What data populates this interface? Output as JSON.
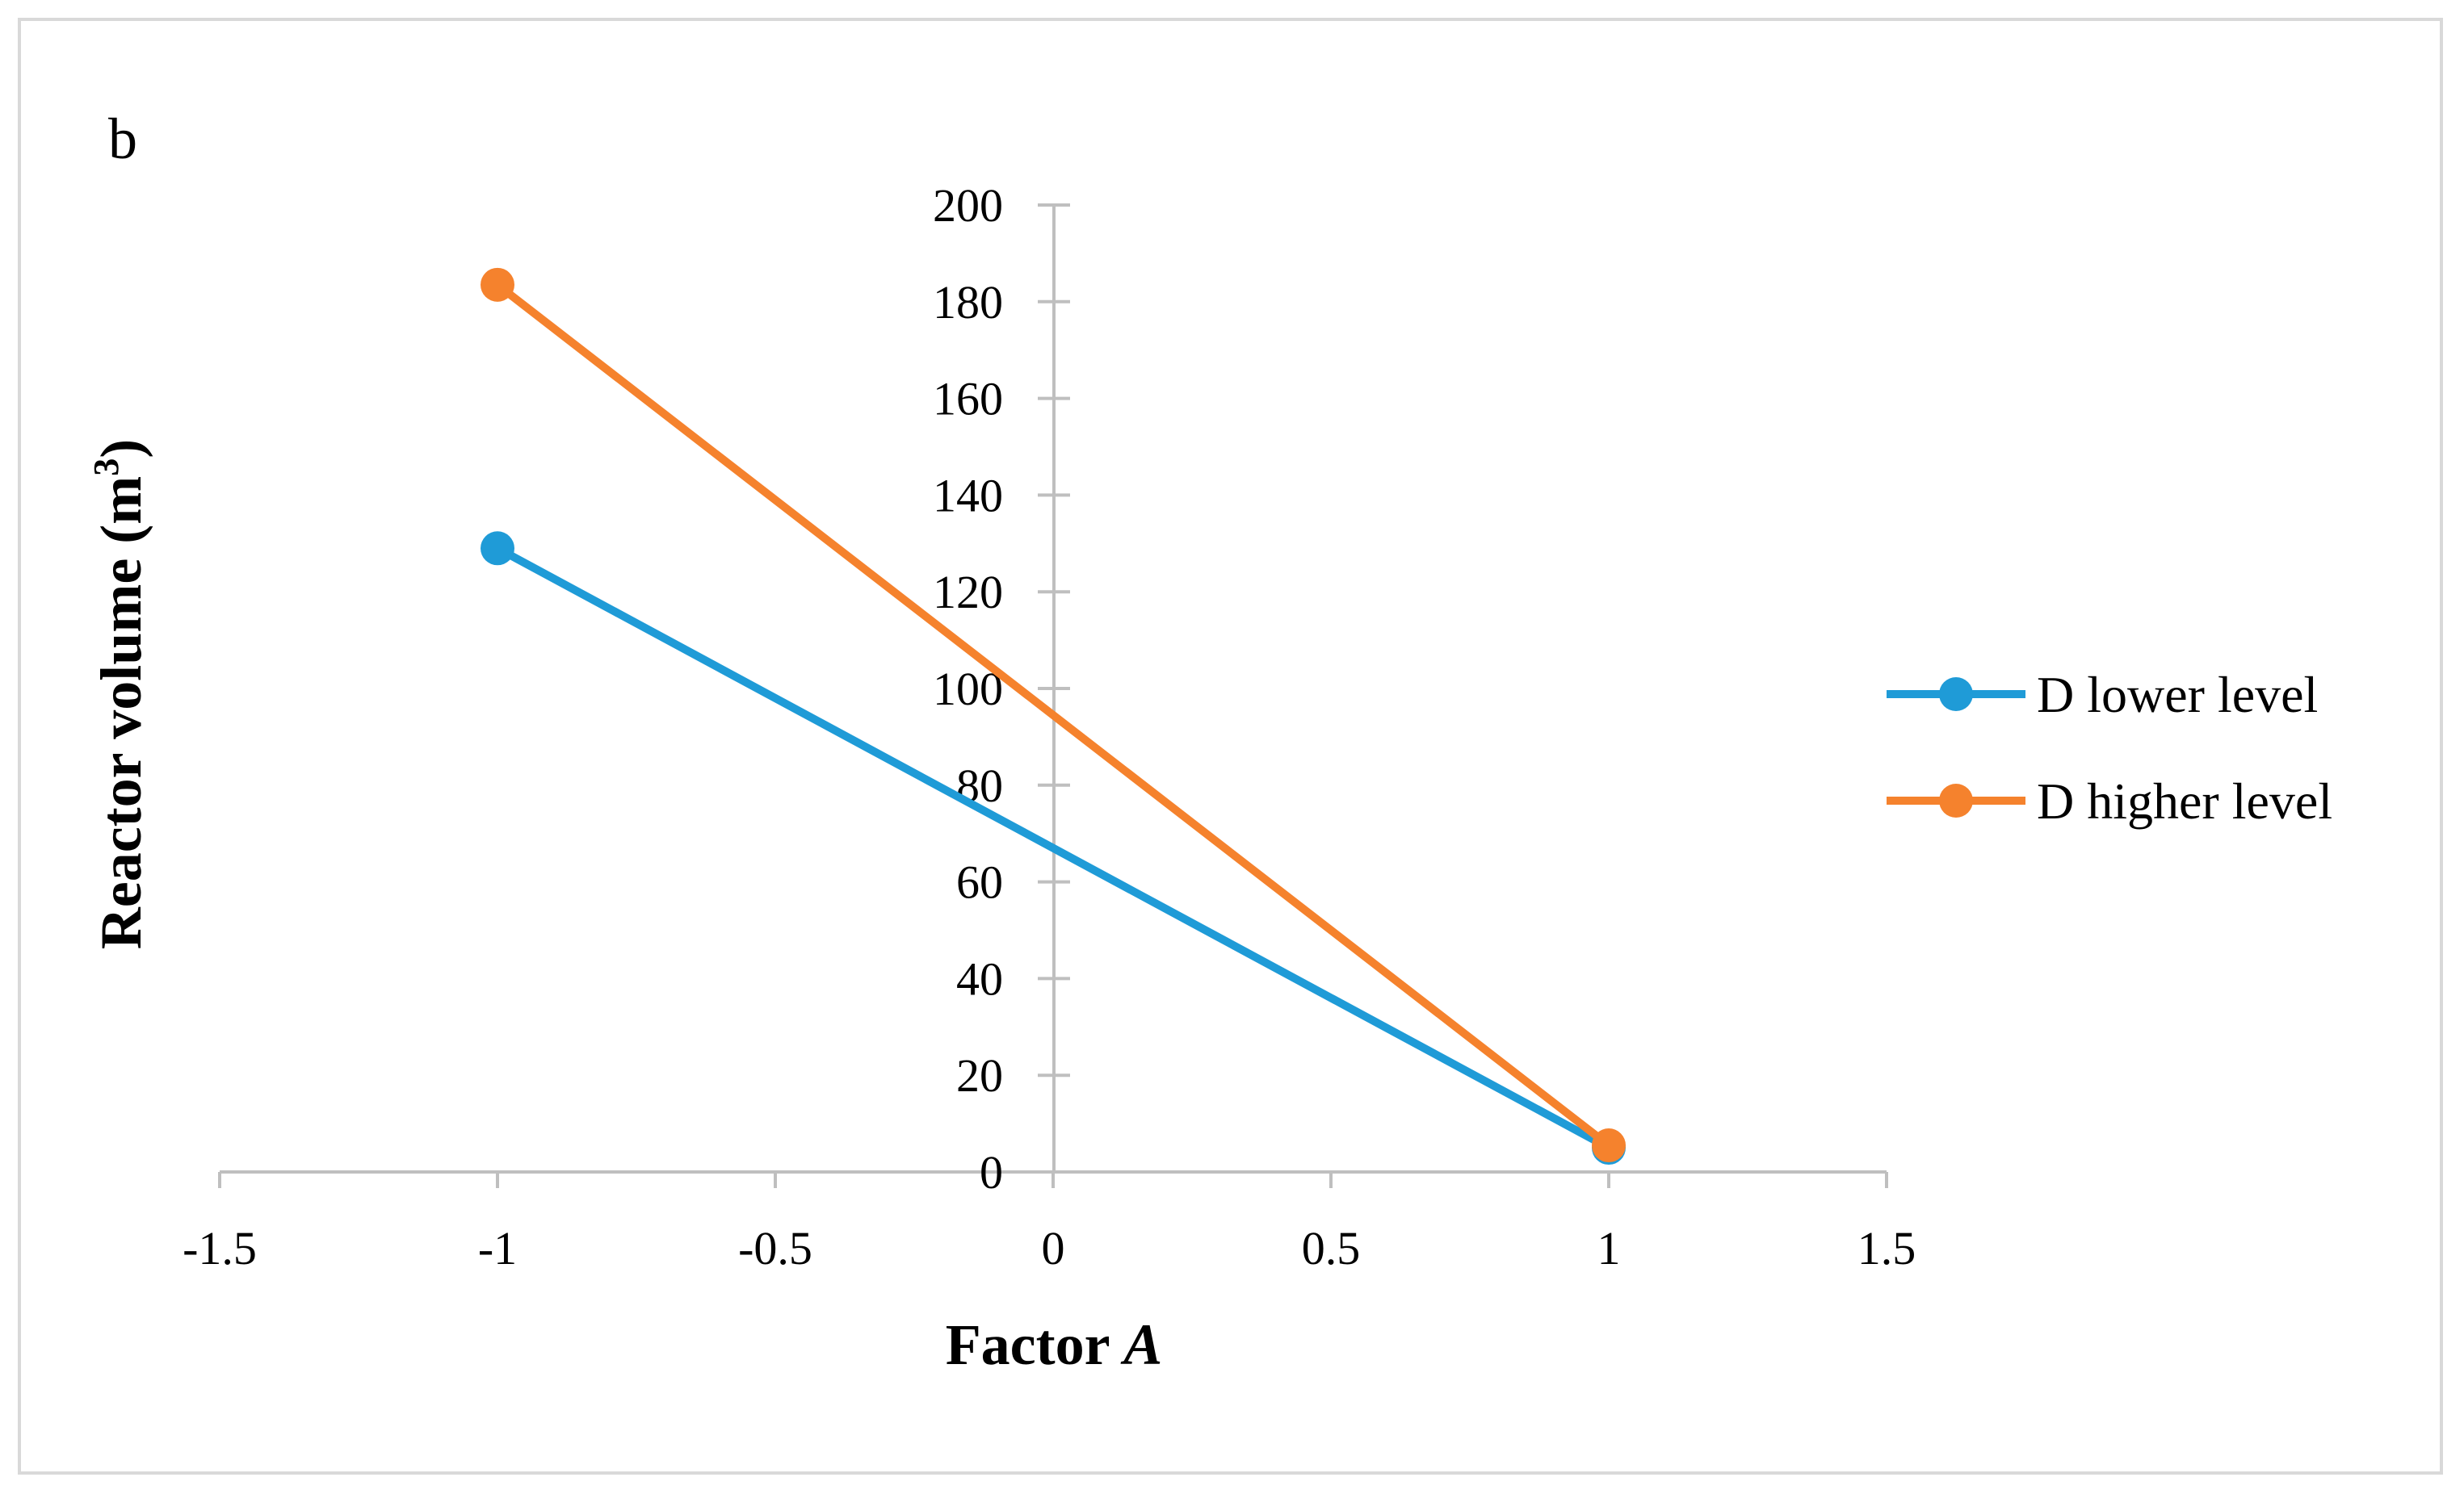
{
  "panel_label": "b",
  "colors": {
    "series_lower": "#1F9BD7",
    "series_higher": "#F5822D",
    "axis": "#bfbfbf",
    "frame": "#d9d9d9"
  },
  "chart_data": {
    "type": "line",
    "title": "",
    "xlabel_prefix": "Factor ",
    "xlabel_italic": "A",
    "ylabel_main": "Reactor volume (m",
    "ylabel_sup": "3",
    "ylabel_close": ")",
    "xlim": [
      -1.5,
      1.5
    ],
    "ylim": [
      0,
      200
    ],
    "x_ticks": [
      -1.5,
      -1,
      -0.5,
      0,
      0.5,
      1,
      1.5
    ],
    "x_tick_labels": [
      "-1.5",
      "-1",
      "-0.5",
      "0",
      "0.5",
      "1",
      "1.5"
    ],
    "y_ticks": [
      0,
      20,
      40,
      60,
      80,
      100,
      120,
      140,
      160,
      180,
      200
    ],
    "y_tick_labels": [
      "0",
      "20",
      "40",
      "60",
      "80",
      "100",
      "120",
      "140",
      "160",
      "180",
      "200"
    ],
    "grid": false,
    "legend_position": "right",
    "series": [
      {
        "name": "D lower level",
        "color": "#1F9BD7",
        "x": [
          -1,
          1
        ],
        "values": [
          129,
          5
        ]
      },
      {
        "name": "D higher level",
        "color": "#F5822D",
        "x": [
          -1,
          1
        ],
        "values": [
          183.5,
          5.5
        ]
      }
    ]
  }
}
